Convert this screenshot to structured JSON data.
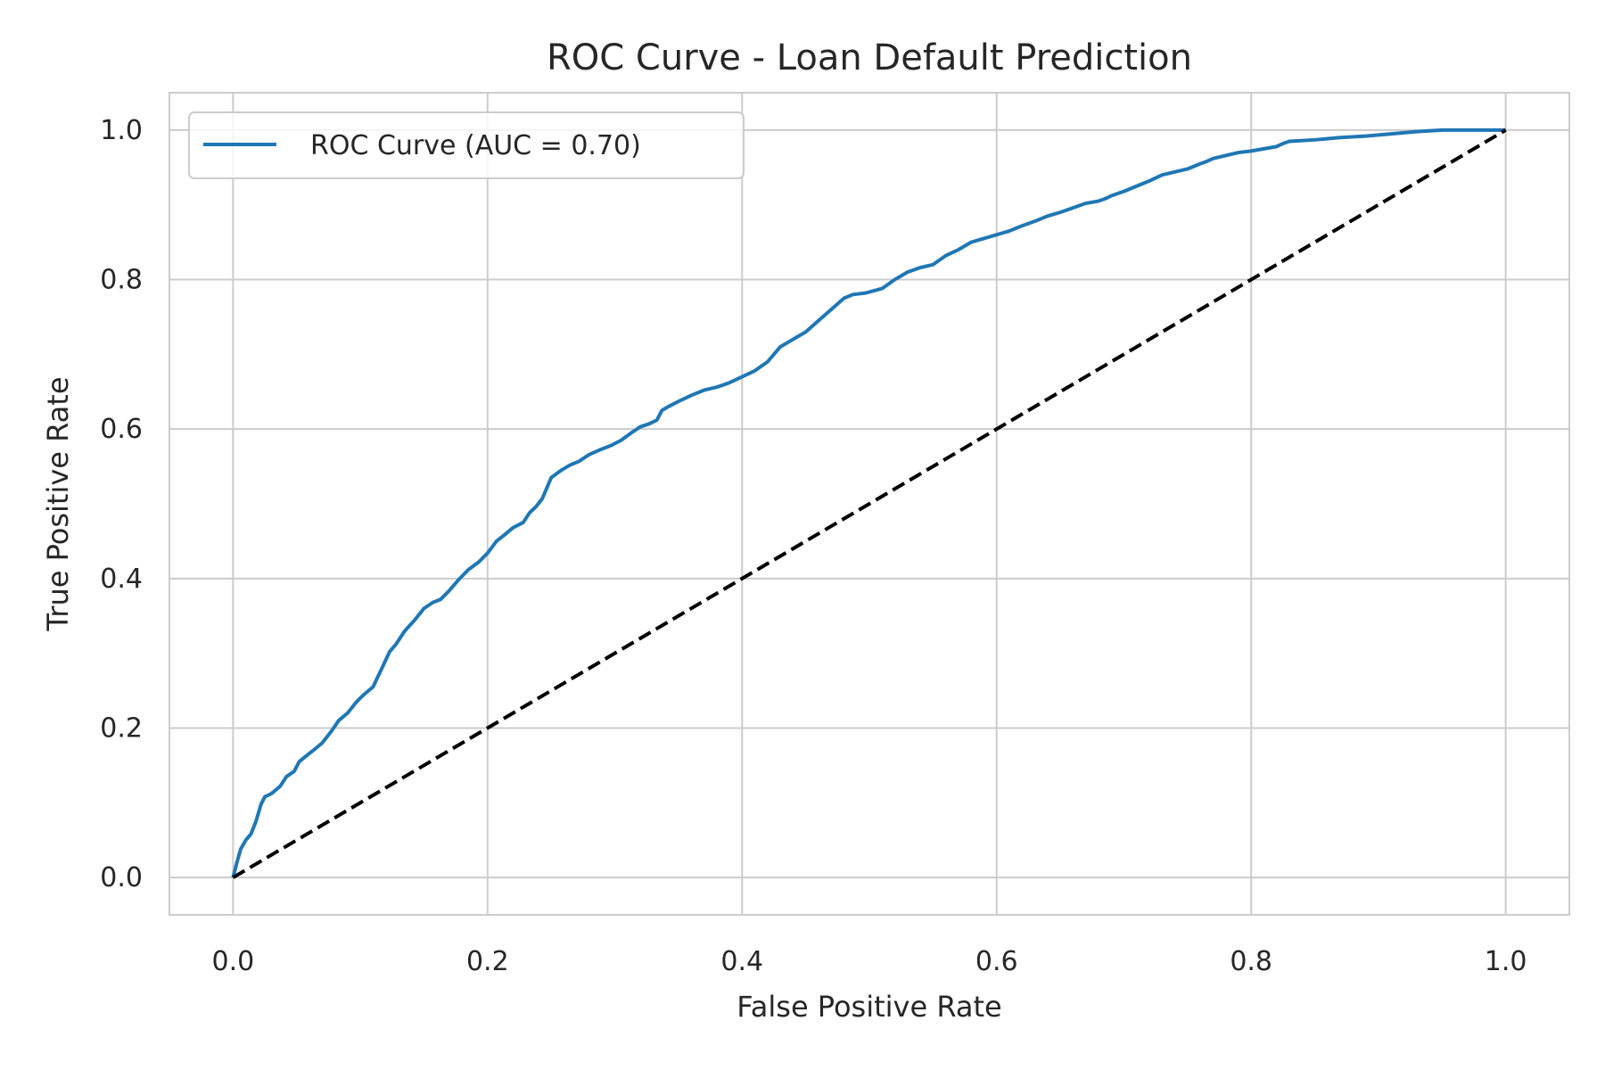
{
  "chart_data": {
    "type": "line",
    "title": "ROC Curve - Loan Default Prediction",
    "xlabel": "False Positive Rate",
    "ylabel": "True Positive Rate",
    "xlim": [
      -0.05,
      1.05
    ],
    "ylim": [
      -0.05,
      1.05
    ],
    "xticks": [
      "0.0",
      "0.2",
      "0.4",
      "0.6",
      "0.8",
      "1.0"
    ],
    "yticks": [
      "0.0",
      "0.2",
      "0.4",
      "0.6",
      "0.8",
      "1.0"
    ],
    "grid": true,
    "legend_position": "top-left",
    "series": [
      {
        "name": "ROC Curve (AUC = 0.70)",
        "color": "#1f77b4",
        "style": "solid",
        "x": [
          0.0,
          0.003,
          0.006,
          0.01,
          0.014,
          0.018,
          0.022,
          0.025,
          0.03,
          0.037,
          0.042,
          0.048,
          0.052,
          0.057,
          0.063,
          0.07,
          0.077,
          0.083,
          0.09,
          0.097,
          0.103,
          0.11,
          0.117,
          0.123,
          0.128,
          0.135,
          0.143,
          0.15,
          0.157,
          0.163,
          0.17,
          0.177,
          0.185,
          0.193,
          0.2,
          0.207,
          0.213,
          0.22,
          0.228,
          0.233,
          0.238,
          0.243,
          0.25,
          0.258,
          0.265,
          0.272,
          0.28,
          0.288,
          0.297,
          0.305,
          0.313,
          0.32,
          0.327,
          0.333,
          0.337,
          0.342,
          0.35,
          0.36,
          0.37,
          0.38,
          0.39,
          0.4,
          0.41,
          0.42,
          0.43,
          0.44,
          0.45,
          0.46,
          0.47,
          0.48,
          0.487,
          0.497,
          0.51,
          0.52,
          0.53,
          0.54,
          0.55,
          0.56,
          0.57,
          0.58,
          0.59,
          0.6,
          0.61,
          0.62,
          0.63,
          0.64,
          0.65,
          0.66,
          0.67,
          0.68,
          0.685,
          0.69,
          0.7,
          0.71,
          0.72,
          0.73,
          0.74,
          0.75,
          0.76,
          0.765,
          0.77,
          0.78,
          0.79,
          0.8,
          0.81,
          0.82,
          0.825,
          0.83,
          0.85,
          0.87,
          0.89,
          0.91,
          0.93,
          0.95,
          0.97,
          0.99,
          1.0
        ],
        "y": [
          0.0,
          0.02,
          0.038,
          0.05,
          0.058,
          0.075,
          0.098,
          0.108,
          0.112,
          0.122,
          0.135,
          0.142,
          0.155,
          0.162,
          0.17,
          0.18,
          0.195,
          0.21,
          0.22,
          0.235,
          0.245,
          0.255,
          0.28,
          0.302,
          0.312,
          0.33,
          0.345,
          0.36,
          0.368,
          0.372,
          0.384,
          0.398,
          0.412,
          0.422,
          0.434,
          0.45,
          0.458,
          0.468,
          0.475,
          0.488,
          0.496,
          0.507,
          0.535,
          0.545,
          0.552,
          0.557,
          0.566,
          0.572,
          0.578,
          0.585,
          0.595,
          0.603,
          0.607,
          0.612,
          0.625,
          0.63,
          0.637,
          0.645,
          0.652,
          0.656,
          0.662,
          0.67,
          0.678,
          0.69,
          0.71,
          0.72,
          0.73,
          0.745,
          0.76,
          0.775,
          0.78,
          0.782,
          0.788,
          0.8,
          0.81,
          0.816,
          0.82,
          0.832,
          0.84,
          0.85,
          0.855,
          0.86,
          0.865,
          0.872,
          0.878,
          0.885,
          0.89,
          0.896,
          0.902,
          0.905,
          0.908,
          0.912,
          0.918,
          0.925,
          0.932,
          0.94,
          0.944,
          0.948,
          0.955,
          0.958,
          0.962,
          0.966,
          0.97,
          0.972,
          0.975,
          0.978,
          0.982,
          0.985,
          0.987,
          0.99,
          0.992,
          0.995,
          0.998,
          1.0,
          1.0,
          1.0,
          1.0
        ]
      },
      {
        "name": "",
        "color": "#000000",
        "style": "dashed",
        "x": [
          0.0,
          1.0
        ],
        "y": [
          0.0,
          1.0
        ]
      }
    ],
    "colors": {
      "roc": "#1f77b4",
      "diagonal": "#000000",
      "grid": "#cccccc",
      "axes_frame": "#cccccc",
      "text": "#262626"
    }
  }
}
